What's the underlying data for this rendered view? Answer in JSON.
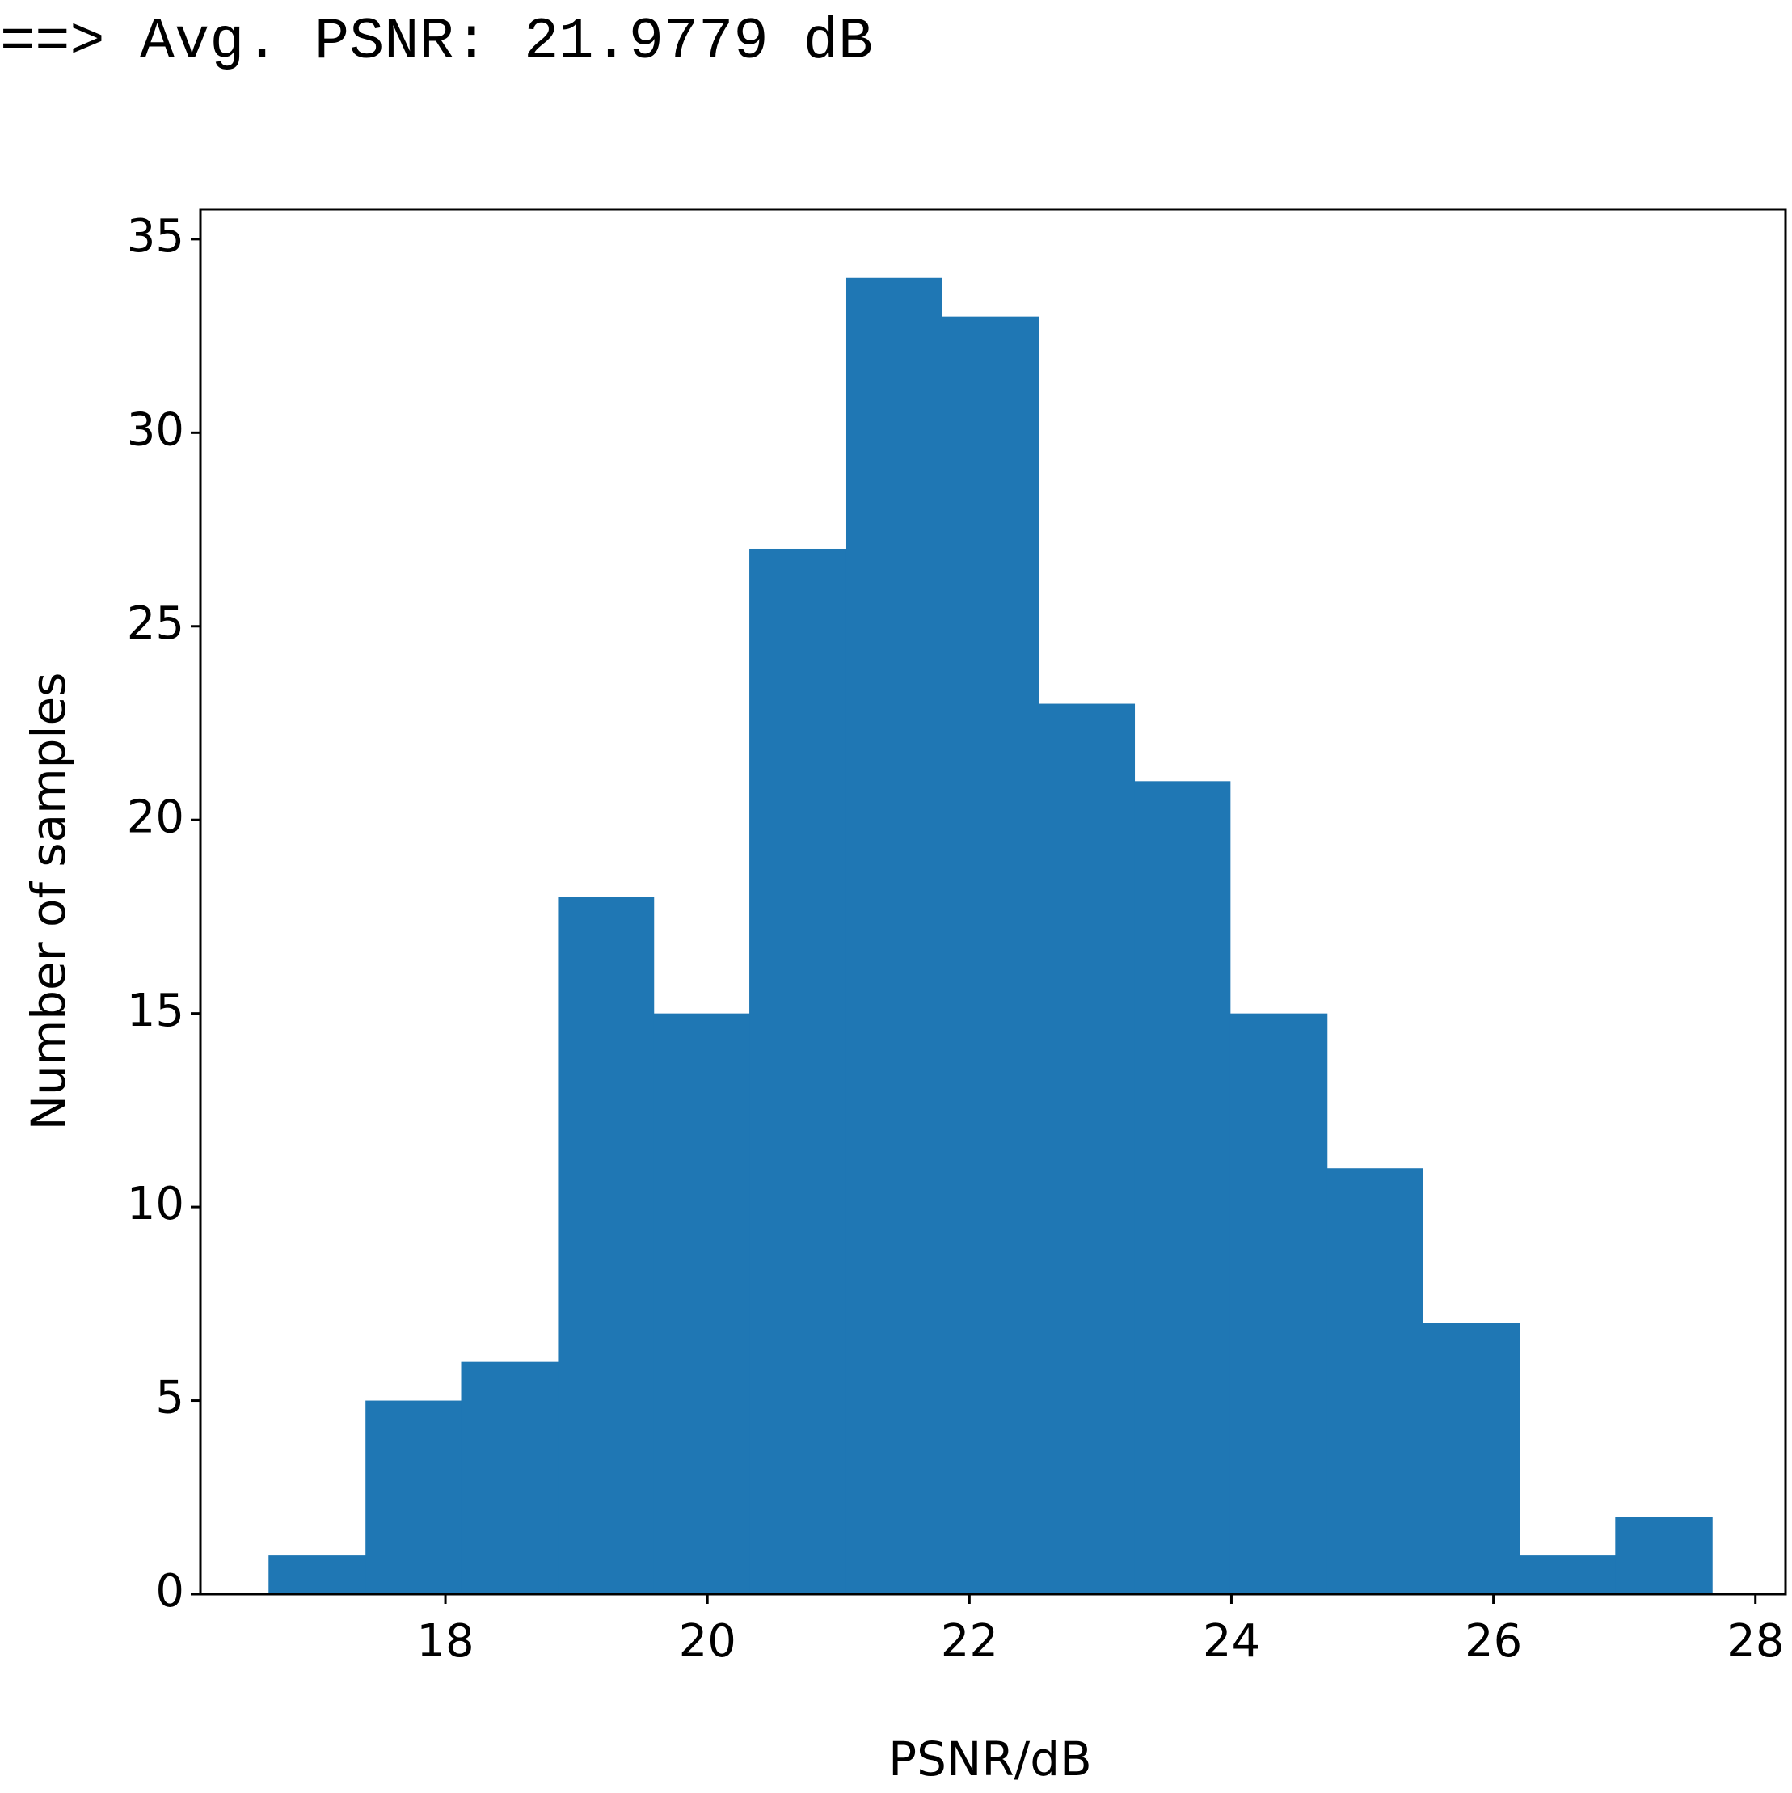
{
  "header": "==> Avg. PSNR: 21.9779 dB",
  "chart_data": {
    "type": "histogram",
    "x_label": "PSNR/dB",
    "y_label": "Number of samples",
    "bins": [
      16.65,
      17.39,
      18.12,
      18.86,
      19.59,
      20.32,
      21.06,
      21.79,
      22.53,
      23.26,
      23.99,
      24.73,
      25.46,
      26.2,
      26.93,
      27.67
    ],
    "values": [
      1,
      5,
      6,
      18,
      15,
      27,
      34,
      33,
      23,
      21,
      15,
      11,
      7,
      1,
      2
    ],
    "color": "#1f77b4",
    "xlim": [
      16.13,
      28.23
    ],
    "ylim": [
      0,
      35.77
    ],
    "xticks": [
      18,
      20,
      22,
      24,
      26,
      28
    ],
    "yticks": [
      0,
      5,
      10,
      15,
      20,
      25,
      30,
      35
    ]
  }
}
